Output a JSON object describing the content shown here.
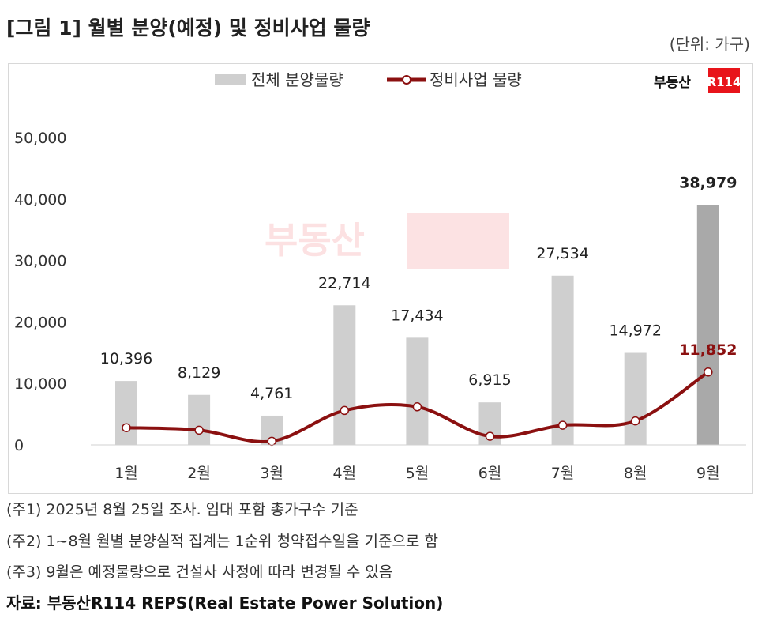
{
  "header": {
    "title": "[그림 1] 월별 분양(예정) 및 정비사업 물량",
    "unit": "(단위: 가구)"
  },
  "logo": {
    "text": "부동산",
    "badge": "R114",
    "badge_color": "#e8141b"
  },
  "chart_data": {
    "type": "bar+line",
    "categories": [
      "1월",
      "2월",
      "3월",
      "4월",
      "5월",
      "6월",
      "7월",
      "8월",
      "9월"
    ],
    "series": [
      {
        "name": "전체 분양물량",
        "type": "bar",
        "color": "#cfcfcf",
        "highlight_color": "#a9a9a9",
        "values": [
          10396,
          8129,
          4761,
          22714,
          17434,
          6915,
          27534,
          14972,
          38979
        ],
        "labels": [
          "10,396",
          "8,129",
          "4,761",
          "22,714",
          "17,434",
          "6,915",
          "27,534",
          "14,972",
          "38,979"
        ]
      },
      {
        "name": "정비사업 물량",
        "type": "line",
        "color": "#8b1010",
        "values": [
          2800,
          2400,
          600,
          5600,
          6200,
          1400,
          3200,
          3900,
          11852
        ],
        "labels": [
          "",
          "",
          "",
          "",
          "",
          "",
          "",
          "",
          "11,852"
        ]
      }
    ],
    "ylim": [
      0,
      50000
    ],
    "yticks": [
      "0",
      "10,000",
      "20,000",
      "30,000",
      "40,000",
      "50,000"
    ],
    "legend": "top-center",
    "grid": false
  },
  "notes": [
    "(주1) 2025년 8월 25일 조사. 임대 포함 총가구수 기준",
    "(주2) 1~8월 월별 분양실적 집계는 1순위 청약접수일을 기준으로 함",
    "(주3) 9월은 예정물량으로 건설사 사정에 따라 변경될 수 있음"
  ],
  "source": "자료: 부동산R114 REPS(Real Estate Power Solution)"
}
